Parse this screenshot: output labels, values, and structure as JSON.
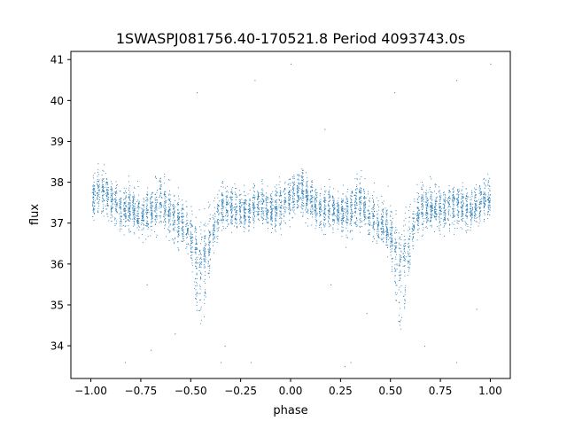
{
  "chart_data": {
    "type": "scatter",
    "title": "1SWASPJ081756.40-170521.8 Period 4093743.0s",
    "xlabel": "phase",
    "ylabel": "flux",
    "xlim": [
      -1.1,
      1.1
    ],
    "ylim": [
      33.2,
      41.2
    ],
    "x_ticks": [
      -1.0,
      -0.75,
      -0.5,
      -0.25,
      0.0,
      0.25,
      0.5,
      0.75,
      1.0
    ],
    "x_tick_labels": [
      "−1.00",
      "−0.75",
      "−0.50",
      "−0.25",
      "0.00",
      "0.25",
      "0.50",
      "0.75",
      "1.00"
    ],
    "y_ticks": [
      34,
      35,
      36,
      37,
      38,
      39,
      40,
      41
    ],
    "y_tick_labels": [
      "34",
      "35",
      "36",
      "37",
      "38",
      "39",
      "40",
      "41"
    ],
    "grid": false,
    "marker_color": "#1f77b4",
    "series": [
      {
        "profile_phase": [
          -1.0,
          -0.95,
          -0.9,
          -0.85,
          -0.8,
          -0.75,
          -0.7,
          -0.65,
          -0.6,
          -0.55,
          -0.5,
          -0.45,
          -0.4,
          -0.35,
          -0.3,
          -0.25,
          -0.2,
          -0.15,
          -0.1,
          -0.05,
          0.0,
          0.05,
          0.1,
          0.15,
          0.2,
          0.25,
          0.3,
          0.35,
          0.4,
          0.45,
          0.5,
          0.55,
          0.6,
          0.65,
          0.7,
          0.75,
          0.8,
          0.85,
          0.9,
          0.95,
          1.0
        ],
        "profile_mean_flux": [
          37.6,
          37.8,
          37.6,
          37.3,
          37.4,
          37.2,
          37.3,
          37.6,
          37.2,
          37.0,
          36.8,
          36.2,
          36.8,
          37.4,
          37.4,
          37.3,
          37.4,
          37.5,
          37.3,
          37.5,
          37.6,
          37.8,
          37.6,
          37.3,
          37.4,
          37.2,
          37.3,
          37.6,
          37.2,
          37.0,
          36.8,
          36.2,
          36.8,
          37.4,
          37.4,
          37.3,
          37.4,
          37.5,
          37.3,
          37.5,
          37.6
        ],
        "profile_spread": [
          0.6,
          0.7,
          0.6,
          0.6,
          0.6,
          0.6,
          0.7,
          0.8,
          0.7,
          0.7,
          0.8,
          1.0,
          0.9,
          0.7,
          0.6,
          0.6,
          0.6,
          0.6,
          0.6,
          0.6,
          0.6,
          0.7,
          0.6,
          0.6,
          0.6,
          0.6,
          0.7,
          0.8,
          0.7,
          0.7,
          0.8,
          1.0,
          0.9,
          0.7,
          0.6,
          0.6,
          0.6,
          0.6,
          0.6,
          0.6,
          0.6
        ],
        "dips": [
          {
            "phase": -0.45,
            "min_flux": 34.2
          },
          {
            "phase": 0.55,
            "min_flux": 34.3
          }
        ],
        "outliers": [
          [
            -0.83,
            33.6
          ],
          [
            -0.7,
            33.9
          ],
          [
            -0.72,
            35.5
          ],
          [
            -0.47,
            40.2
          ],
          [
            -0.35,
            33.6
          ],
          [
            -0.18,
            40.5
          ],
          [
            -0.2,
            33.6
          ],
          [
            -0.58,
            34.3
          ],
          [
            0.0,
            40.9
          ],
          [
            0.17,
            39.3
          ],
          [
            0.27,
            33.5
          ],
          [
            0.38,
            34.8
          ],
          [
            0.52,
            40.2
          ],
          [
            0.83,
            40.5
          ],
          [
            0.83,
            33.6
          ],
          [
            0.93,
            34.9
          ],
          [
            1.0,
            40.9
          ],
          [
            -0.33,
            34.0
          ],
          [
            0.67,
            34.0
          ],
          [
            0.2,
            35.5
          ],
          [
            0.3,
            33.6
          ]
        ]
      }
    ]
  }
}
